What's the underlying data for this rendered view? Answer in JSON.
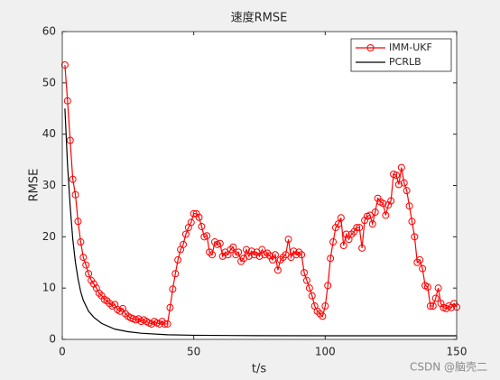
{
  "chart_data": {
    "type": "line",
    "title": "速度RMSE",
    "x_label": "t/s",
    "y_label": "RMSE",
    "xlim": [
      0,
      150
    ],
    "xticks": [
      0,
      50,
      100,
      150
    ],
    "ylim": [
      0,
      60
    ],
    "yticks": [
      0,
      10,
      20,
      30,
      40,
      50,
      60
    ],
    "legend": "top-right",
    "series": [
      {
        "name": "IMM-UKF",
        "color": "#ff0000",
        "marker": "circle",
        "x": [
          1,
          2,
          3,
          4,
          5,
          6,
          7,
          8,
          9,
          10,
          11,
          12,
          13,
          14,
          15,
          16,
          17,
          18,
          19,
          20,
          21,
          22,
          23,
          24,
          25,
          26,
          27,
          28,
          29,
          30,
          31,
          32,
          33,
          34,
          35,
          36,
          37,
          38,
          39,
          40,
          41,
          42,
          43,
          44,
          45,
          46,
          47,
          48,
          49,
          50,
          51,
          52,
          53,
          54,
          55,
          56,
          57,
          58,
          59,
          60,
          61,
          62,
          63,
          64,
          65,
          66,
          67,
          68,
          69,
          70,
          71,
          72,
          73,
          74,
          75,
          76,
          77,
          78,
          79,
          80,
          81,
          82,
          83,
          84,
          85,
          86,
          87,
          88,
          89,
          90,
          91,
          92,
          93,
          94,
          95,
          96,
          97,
          98,
          99,
          100,
          101,
          102,
          103,
          104,
          105,
          106,
          107,
          108,
          109,
          110,
          111,
          112,
          113,
          114,
          115,
          116,
          117,
          118,
          119,
          120,
          121,
          122,
          123,
          124,
          125,
          126,
          127,
          128,
          129,
          130,
          131,
          132,
          133,
          134,
          135,
          136,
          137,
          138,
          139,
          140,
          141,
          142,
          143,
          144,
          145,
          146,
          147,
          148,
          149,
          150
        ],
        "values": [
          53.5,
          46.5,
          38.8,
          31.2,
          28.2,
          23,
          19,
          16,
          14.5,
          12.8,
          11.5,
          10.8,
          10,
          9,
          8.5,
          7.8,
          7.5,
          7,
          6.5,
          6.8,
          5.8,
          5.5,
          6,
          5,
          4.5,
          4.2,
          4,
          3.8,
          4,
          3.5,
          3.8,
          3.5,
          3.2,
          3,
          3.5,
          3.2,
          3,
          3.5,
          3,
          3,
          6.2,
          9.8,
          12.8,
          15.5,
          17.5,
          18.5,
          20.5,
          21.8,
          22.8,
          24.5,
          24.5,
          23.8,
          22,
          20,
          20.2,
          17,
          16.5,
          19,
          18.5,
          18.7,
          16.2,
          17,
          16.5,
          17.5,
          18,
          16.5,
          17,
          15.2,
          15.8,
          17.5,
          16.2,
          17.2,
          16.5,
          17,
          16.2,
          17.5,
          16.5,
          16.8,
          16.3,
          15.5,
          16.5,
          13.5,
          15.5,
          16,
          16.5,
          19.5,
          16,
          17.2,
          16.5,
          17,
          16.5,
          13,
          11.5,
          10,
          8.5,
          6.5,
          5.5,
          5,
          4.5,
          6.5,
          10.5,
          15.8,
          19,
          21.8,
          22.5,
          23.7,
          18.3,
          20.5,
          19.5,
          20.5,
          21,
          21.8,
          21.8,
          17.8,
          23.2,
          24,
          24.2,
          22.5,
          24.8,
          27.5,
          26.8,
          26.5,
          24.2,
          26.2,
          27,
          32.2,
          32,
          30.2,
          33.5,
          30.5,
          29,
          26,
          23,
          20,
          15,
          15.5,
          13.8,
          10.5,
          10.2,
          6.5,
          6.5,
          8,
          10,
          7,
          6.2,
          6,
          6.5,
          6.2,
          7,
          6.3
        ]
      },
      {
        "name": "PCRLB",
        "color": "#000000",
        "x": [
          1,
          2,
          3,
          4,
          5,
          6,
          7,
          8,
          10,
          12,
          15,
          20,
          25,
          30,
          40,
          50,
          75,
          100,
          125,
          150
        ],
        "values": [
          45,
          34,
          26,
          19.5,
          15,
          11.8,
          9.3,
          7.6,
          5.5,
          4.3,
          3.1,
          2,
          1.5,
          1.2,
          0.9,
          0.8,
          0.72,
          0.7,
          0.7,
          0.7
        ]
      }
    ],
    "watermark": "CSDN @脑壳二"
  }
}
